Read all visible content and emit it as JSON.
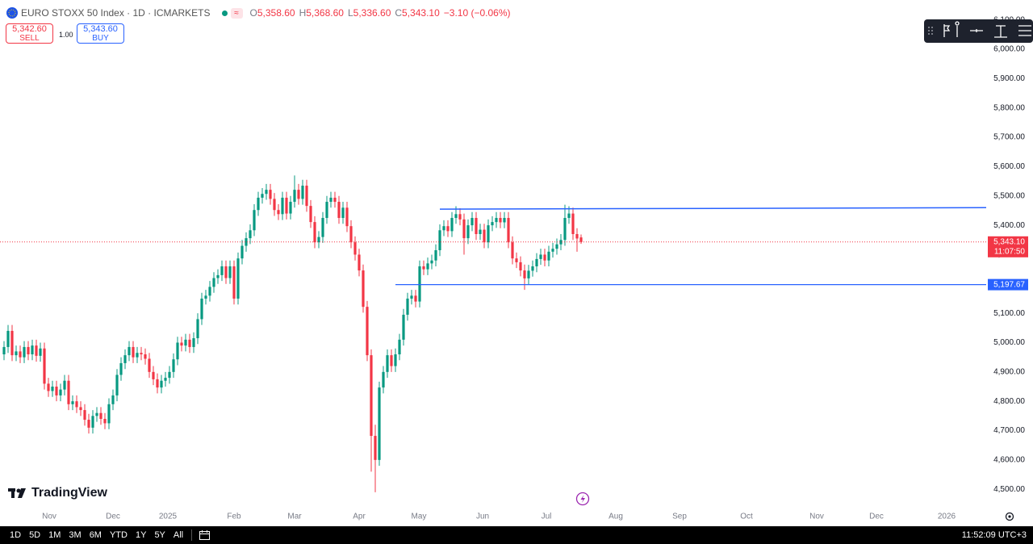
{
  "header": {
    "symbol": "EURO STOXX 50 Index · 1D · ICMARKETS",
    "ohlc": [
      {
        "key": "O",
        "value": "5,358.60"
      },
      {
        "key": "H",
        "value": "5,368.60"
      },
      {
        "key": "L",
        "value": "5,336.60"
      },
      {
        "key": "C",
        "value": "5,343.10"
      }
    ],
    "change": "−3.10 (−0.06%)"
  },
  "trade": {
    "sell_price": "5,342.60",
    "sell": "SELL",
    "quantity": "1.00",
    "buy_price": "5,343.60",
    "buy": "BUY"
  },
  "brand": "TradingView",
  "ranges": [
    "1D",
    "5D",
    "1M",
    "3M",
    "6M",
    "YTD",
    "1Y",
    "5Y",
    "All"
  ],
  "clock": "11:52:09 UTC+3",
  "chart_data": {
    "type": "candlestick",
    "open": [
      4960,
      4985,
      5040,
      4957,
      4970,
      4950,
      4985,
      4960,
      4990,
      4955,
      4980,
      4860,
      4835,
      4850,
      4820,
      4840,
      4870,
      4790,
      4800,
      4780,
      4770,
      4737,
      4710,
      4750,
      4760,
      4740,
      4725,
      4790,
      4820,
      4890,
      4930,
      4957,
      4985,
      4950,
      4965,
      4960,
      4945,
      4900,
      4875,
      4847,
      4870,
      4880,
      4900,
      4943,
      5000,
      4990,
      5010,
      4985,
      5015,
      5080,
      5150,
      5160,
      5190,
      5220,
      5230,
      5260,
      5220,
      5260,
      5150,
      5287,
      5330,
      5356,
      5383,
      5452,
      5494,
      5507,
      5521,
      5490,
      5452,
      5438,
      5494,
      5440,
      5480,
      5521,
      5490,
      5535,
      5466,
      5411,
      5342,
      5360,
      5425,
      5480,
      5494,
      5480,
      5425,
      5460,
      5397,
      5342,
      5300,
      5246,
      5122,
      4957,
      4682,
      4600,
      4847,
      4900,
      4957,
      4920,
      4960,
      5010,
      5095,
      5150,
      5160,
      5140,
      5260,
      5250,
      5270,
      5280,
      5315,
      5383,
      5397,
      5380,
      5425,
      5438,
      5420,
      5356,
      5400,
      5425,
      5370,
      5385,
      5342,
      5400,
      5411,
      5425,
      5410,
      5425,
      5342,
      5287,
      5274,
      5246,
      5219,
      5245,
      5260,
      5285,
      5300,
      5280,
      5310,
      5320,
      5335,
      5350,
      5425,
      5440,
      5370,
      5358.6
    ],
    "high": [
      5005,
      5060,
      5060,
      4990,
      4990,
      5005,
      5005,
      5010,
      5010,
      5000,
      5000,
      4880,
      4870,
      4870,
      4860,
      4890,
      4890,
      4820,
      4820,
      4800,
      4790,
      4757,
      4770,
      4780,
      4780,
      4760,
      4810,
      4840,
      4910,
      4950,
      4977,
      5005,
      5005,
      4985,
      4985,
      4980,
      4965,
      4920,
      4895,
      4890,
      4900,
      4920,
      4963,
      5020,
      5020,
      5030,
      5030,
      5035,
      5100,
      5170,
      5180,
      5210,
      5240,
      5250,
      5280,
      5280,
      5280,
      5280,
      5307,
      5350,
      5376,
      5403,
      5472,
      5514,
      5527,
      5541,
      5541,
      5510,
      5472,
      5514,
      5514,
      5500,
      5570,
      5541,
      5555,
      5555,
      5486,
      5431,
      5380,
      5445,
      5500,
      5514,
      5514,
      5500,
      5480,
      5480,
      5417,
      5362,
      5320,
      5266,
      5142,
      4977,
      4720,
      4867,
      4920,
      4977,
      4977,
      4980,
      5030,
      5115,
      5170,
      5180,
      5180,
      5280,
      5280,
      5290,
      5300,
      5335,
      5403,
      5417,
      5417,
      5445,
      5465,
      5458,
      5440,
      5420,
      5445,
      5445,
      5405,
      5405,
      5420,
      5431,
      5445,
      5445,
      5445,
      5445,
      5362,
      5307,
      5294,
      5266,
      5265,
      5280,
      5305,
      5320,
      5320,
      5330,
      5340,
      5355,
      5370,
      5470,
      5465,
      5460,
      5390,
      5368.6
    ],
    "low": [
      4940,
      4965,
      4937,
      4937,
      4930,
      4930,
      4940,
      4940,
      4935,
      4935,
      4840,
      4815,
      4815,
      4800,
      4800,
      4820,
      4770,
      4770,
      4760,
      4750,
      4717,
      4690,
      4690,
      4730,
      4720,
      4705,
      4705,
      4770,
      4800,
      4870,
      4910,
      4937,
      4930,
      4930,
      4940,
      4925,
      4880,
      4855,
      4827,
      4827,
      4850,
      4860,
      4880,
      4923,
      4970,
      4970,
      4965,
      4965,
      4995,
      5060,
      5130,
      5140,
      5170,
      5200,
      5210,
      5200,
      5200,
      5130,
      5130,
      5267,
      5310,
      5336,
      5363,
      5432,
      5474,
      5487,
      5470,
      5432,
      5418,
      5418,
      5420,
      5420,
      5460,
      5470,
      5470,
      5446,
      5391,
      5322,
      5322,
      5340,
      5405,
      5460,
      5460,
      5405,
      5405,
      5377,
      5322,
      5280,
      5226,
      5102,
      4937,
      4560,
      4490,
      4580,
      4827,
      4880,
      4900,
      4900,
      4940,
      4990,
      5075,
      5130,
      5120,
      5120,
      5230,
      5230,
      5250,
      5260,
      5295,
      5363,
      5360,
      5360,
      5405,
      5400,
      5300,
      5336,
      5380,
      5350,
      5350,
      5322,
      5322,
      5380,
      5391,
      5390,
      5390,
      5322,
      5267,
      5254,
      5226,
      5180,
      5199,
      5225,
      5240,
      5265,
      5260,
      5260,
      5290,
      5300,
      5315,
      5330,
      5405,
      5350,
      5310,
      5336.6
    ],
    "close": [
      4985,
      5040,
      4957,
      4970,
      4950,
      4985,
      4960,
      4990,
      4955,
      4980,
      4860,
      4835,
      4850,
      4820,
      4840,
      4870,
      4790,
      4800,
      4780,
      4770,
      4737,
      4710,
      4750,
      4760,
      4740,
      4725,
      4790,
      4820,
      4890,
      4930,
      4957,
      4985,
      4950,
      4965,
      4960,
      4945,
      4900,
      4875,
      4847,
      4870,
      4880,
      4900,
      4943,
      5000,
      4990,
      5010,
      4985,
      5015,
      5080,
      5150,
      5160,
      5190,
      5220,
      5230,
      5260,
      5220,
      5260,
      5150,
      5287,
      5330,
      5356,
      5383,
      5452,
      5494,
      5507,
      5521,
      5490,
      5452,
      5438,
      5494,
      5440,
      5480,
      5521,
      5490,
      5535,
      5466,
      5411,
      5342,
      5360,
      5425,
      5480,
      5494,
      5480,
      5425,
      5460,
      5397,
      5342,
      5300,
      5246,
      5122,
      4957,
      4682,
      4600,
      4847,
      4900,
      4957,
      4920,
      4960,
      5010,
      5095,
      5150,
      5160,
      5140,
      5260,
      5250,
      5270,
      5280,
      5315,
      5383,
      5397,
      5380,
      5425,
      5438,
      5420,
      5356,
      5400,
      5425,
      5370,
      5385,
      5342,
      5400,
      5411,
      5425,
      5410,
      5425,
      5342,
      5287,
      5274,
      5246,
      5219,
      5245,
      5260,
      5285,
      5300,
      5280,
      5310,
      5320,
      5335,
      5350,
      5425,
      5440,
      5370,
      5355,
      5343.1
    ],
    "up_color": "#089981",
    "down_color": "#f23645",
    "xlim": [
      -1,
      243.4
    ],
    "xticks": [
      {
        "value": 11.2,
        "label": "Nov"
      },
      {
        "value": 27,
        "label": "Dec"
      },
      {
        "value": 40.6,
        "label": "2025"
      },
      {
        "value": 57,
        "label": "Feb"
      },
      {
        "value": 72,
        "label": "Mar"
      },
      {
        "value": 88,
        "label": "Apr"
      },
      {
        "value": 102.8,
        "label": "May"
      },
      {
        "value": 118.6,
        "label": "Jun"
      },
      {
        "value": 134.4,
        "label": "Jul"
      },
      {
        "value": 151.6,
        "label": "Aug"
      },
      {
        "value": 167.4,
        "label": "Sep"
      },
      {
        "value": 184,
        "label": "Oct"
      },
      {
        "value": 201.4,
        "label": "Nov"
      },
      {
        "value": 216.2,
        "label": "Dec"
      },
      {
        "value": 233.6,
        "label": "2026"
      }
    ],
    "ylim": [
      4440,
      6168
    ],
    "yticks": [
      {
        "value": 4500,
        "label": "4,500.00"
      },
      {
        "value": 4600,
        "label": "4,600.00"
      },
      {
        "value": 4700,
        "label": "4,700.00"
      },
      {
        "value": 4800,
        "label": "4,800.00"
      },
      {
        "value": 4900,
        "label": "4,900.00"
      },
      {
        "value": 5000,
        "label": "5,000.00"
      },
      {
        "value": 5100,
        "label": "5,100.00"
      },
      {
        "value": 5200,
        "label": "5,200.00"
      },
      {
        "value": 5300,
        "label": "5,300.00"
      },
      {
        "value": 5400,
        "label": "5,400.00"
      },
      {
        "value": 5500,
        "label": "5,500.00"
      },
      {
        "value": 5600,
        "label": "5,600.00"
      },
      {
        "value": 5700,
        "label": "5,700.00"
      },
      {
        "value": 5800,
        "label": "5,800.00"
      },
      {
        "value": 5900,
        "label": "5,900.00"
      },
      {
        "value": 6000,
        "label": "6,000.00"
      },
      {
        "value": 6100,
        "label": "6,100.00"
      }
    ],
    "grid": false,
    "trendline": {
      "start": 5455,
      "end": 5460,
      "color": "#2962ff"
    },
    "level": {
      "value": 5197.67,
      "label": "5,197.67",
      "color": "#2962ff"
    },
    "last_price": {
      "value": 5343.1,
      "label": "5,343.10",
      "countdown": "11:07:50",
      "color": "#f23645"
    }
  }
}
